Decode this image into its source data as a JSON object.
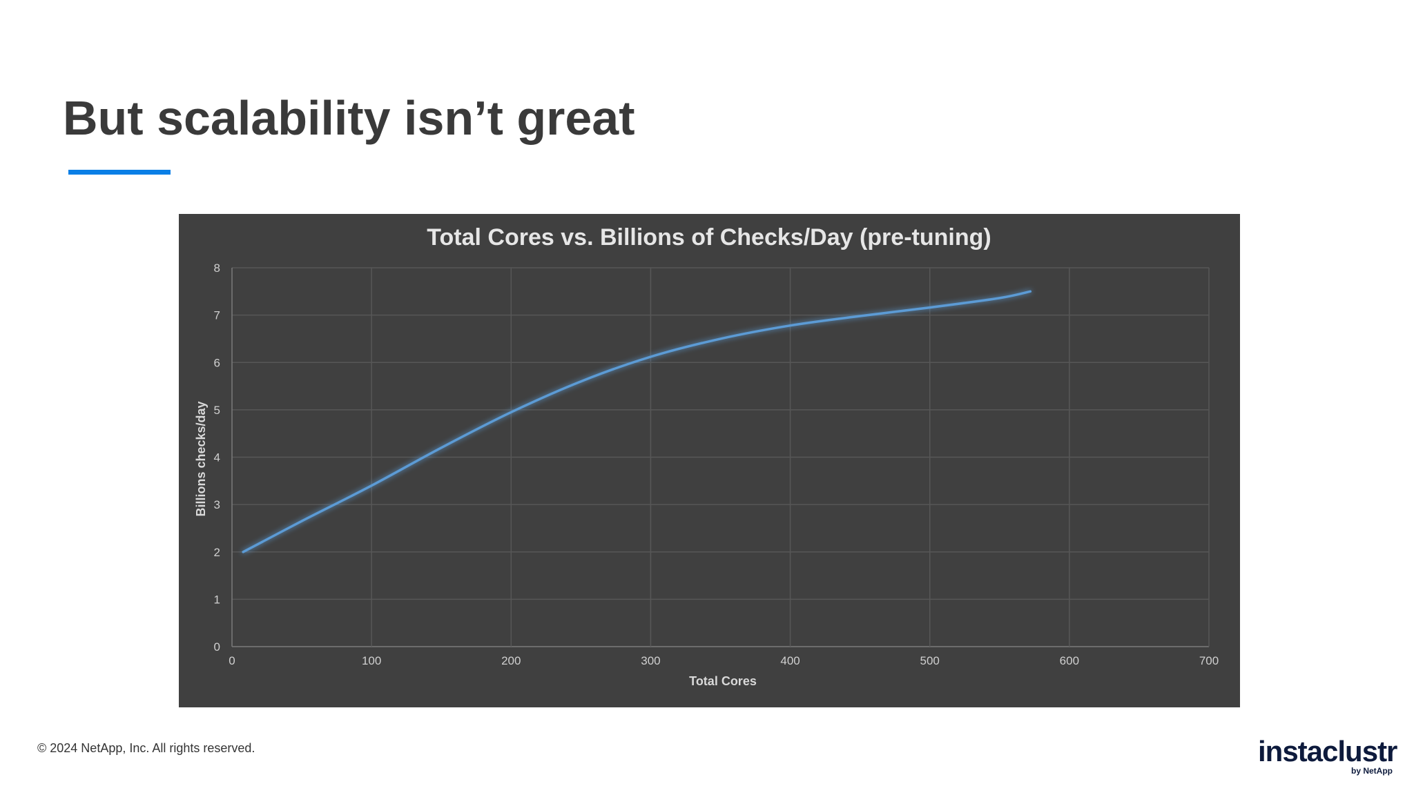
{
  "slide": {
    "title": "But scalability isn’t great",
    "accent_color": "#0a7fe6"
  },
  "footer": {
    "copyright": "© 2024 NetApp, Inc. All rights reserved."
  },
  "brand": {
    "name": "instaclustr",
    "tagline": "by NetApp",
    "color": "#0d1a3c"
  },
  "chart_data": {
    "type": "line",
    "title": "Total Cores vs. Billions of Checks/Day (pre-tuning)",
    "xlabel": "Total Cores",
    "ylabel": "Billions checks/day",
    "xlim": [
      0,
      700
    ],
    "ylim": [
      0,
      8
    ],
    "x_ticks": [
      0,
      100,
      200,
      300,
      400,
      500,
      600,
      700
    ],
    "y_ticks": [
      0,
      1,
      2,
      3,
      4,
      5,
      6,
      7,
      8
    ],
    "grid": true,
    "legend": "none",
    "background_color": "#404040",
    "line_color": "#5b9bd5",
    "series": [
      {
        "x": [
          8,
          50,
          100,
          150,
          200,
          250,
          300,
          350,
          400,
          450,
          500,
          550,
          572
        ],
        "y": [
          2.0,
          2.65,
          3.4,
          4.2,
          4.95,
          5.6,
          6.12,
          6.5,
          6.78,
          6.98,
          7.16,
          7.36,
          7.5
        ]
      }
    ]
  }
}
